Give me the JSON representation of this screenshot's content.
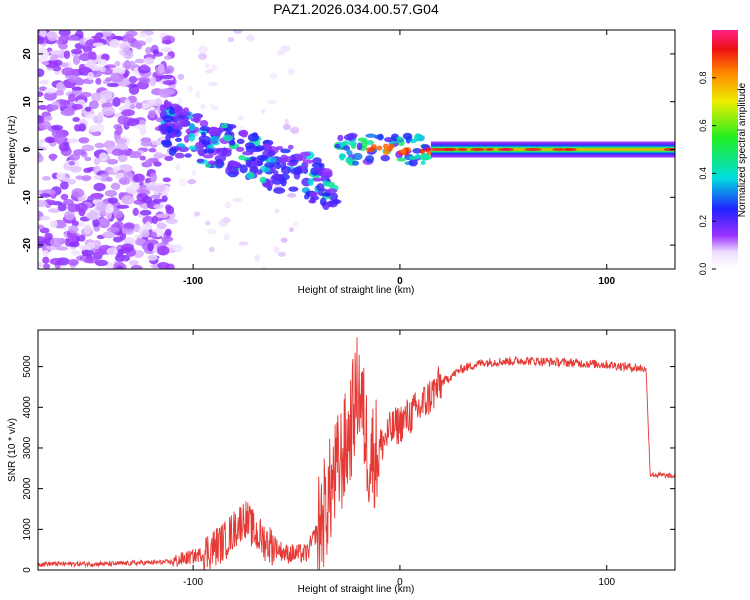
{
  "title": "PAZ1.2026.034.00.57.G04",
  "chart_data": [
    {
      "type": "heatmap",
      "title": "PAZ1.2026.034.00.57.G04",
      "xlabel": "Height of straight line (km)",
      "ylabel": "Frequency (Hz)",
      "xlim": [
        -175,
        133
      ],
      "ylim": [
        -25,
        25
      ],
      "xticks": [
        -100,
        0,
        100
      ],
      "yticks": [
        -20,
        -10,
        0,
        10,
        20
      ],
      "colorbar": {
        "label": "Normalized spectral amplitude",
        "range": [
          0,
          1
        ],
        "ticks": [
          0.0,
          0.2,
          0.4,
          0.6,
          0.8
        ]
      },
      "features": [
        {
          "name": "noise-region",
          "x_range": [
            -175,
            -110
          ],
          "y_range": [
            -25,
            25
          ],
          "amplitude": 0.05
        },
        {
          "name": "scattered-band",
          "x_range": [
            -115,
            -30
          ],
          "y_center_start": 5,
          "y_center_end": -8,
          "amplitude": 0.2
        },
        {
          "name": "transition",
          "x_range": [
            -30,
            15
          ],
          "y_range": [
            -3,
            3
          ],
          "amplitude": 0.5
        },
        {
          "name": "carrier-line",
          "x_range": [
            15,
            133
          ],
          "y_center": 0,
          "amplitude": 0.9
        }
      ]
    },
    {
      "type": "line",
      "xlabel": "Height of straight line (km)",
      "ylabel": "SNR (10 * v/v)",
      "xlim": [
        -175,
        133
      ],
      "ylim": [
        0,
        5900
      ],
      "xticks": [
        -100,
        0,
        100
      ],
      "yticks": [
        0,
        1000,
        2000,
        3000,
        4000,
        5000
      ],
      "color": "#e53935",
      "series": [
        {
          "name": "SNR",
          "x": [
            -175,
            -140,
            -110,
            -95,
            -85,
            -75,
            -70,
            -65,
            -55,
            -45,
            -38,
            -32,
            -25,
            -20,
            -15,
            -10,
            -5,
            0,
            10,
            20,
            30,
            40,
            60,
            80,
            100,
            118,
            119,
            121,
            133
          ],
          "values": [
            150,
            150,
            200,
            400,
            700,
            1300,
            900,
            700,
            400,
            400,
            1200,
            2200,
            3200,
            4600,
            2800,
            3000,
            3400,
            3600,
            4000,
            4600,
            4950,
            5100,
            5150,
            5100,
            5050,
            4950,
            4950,
            2350,
            2300
          ]
        }
      ]
    }
  ]
}
